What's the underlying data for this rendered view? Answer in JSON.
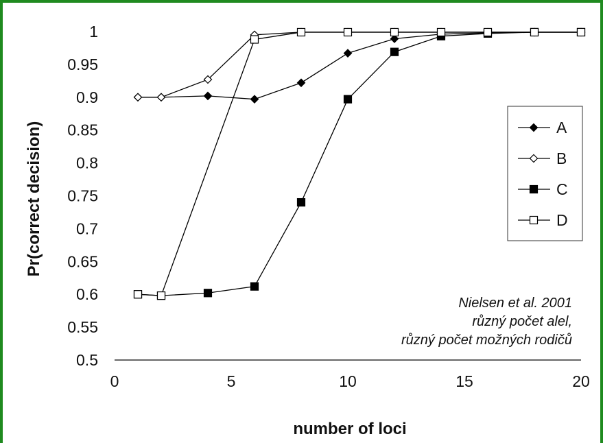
{
  "chart_data": {
    "type": "line",
    "title": "",
    "xlabel": "number of loci",
    "ylabel": "Pr(correct decision)",
    "xlim": [
      0,
      20
    ],
    "ylim": [
      0.5,
      1
    ],
    "xticks": [
      0,
      5,
      10,
      15,
      20
    ],
    "yticks": [
      0.5,
      0.55,
      0.6,
      0.65,
      0.7,
      0.75,
      0.8,
      0.85,
      0.9,
      0.95,
      1
    ],
    "grid": false,
    "legend_position": "right",
    "series": [
      {
        "name": "A",
        "marker": "filled-diamond",
        "color": "#000000",
        "x": [
          1,
          2,
          4,
          6,
          8,
          10,
          12,
          14,
          16,
          18,
          20
        ],
        "y": [
          0.9,
          0.9,
          0.902,
          0.897,
          0.922,
          0.967,
          0.989,
          0.996,
          0.998,
          0.999,
          0.999
        ]
      },
      {
        "name": "B",
        "marker": "open-diamond",
        "color": "#000000",
        "x": [
          1,
          2,
          4,
          6,
          8,
          10,
          12,
          14,
          16,
          18,
          20
        ],
        "y": [
          0.9,
          0.9,
          0.927,
          0.995,
          0.999,
          0.999,
          0.999,
          0.999,
          0.999,
          0.999,
          0.999
        ]
      },
      {
        "name": "C",
        "marker": "filled-square",
        "color": "#000000",
        "x": [
          1,
          2,
          4,
          6,
          8,
          10,
          12,
          14,
          16,
          18,
          20
        ],
        "y": [
          0.6,
          0.598,
          0.602,
          0.612,
          0.74,
          0.897,
          0.969,
          0.993,
          0.997,
          0.999,
          0.999
        ]
      },
      {
        "name": "D",
        "marker": "open-square",
        "color": "#000000",
        "x": [
          1,
          2,
          6,
          8,
          10,
          12,
          14,
          16,
          18,
          20
        ],
        "y": [
          0.6,
          0.598,
          0.988,
          0.999,
          0.999,
          0.999,
          0.999,
          0.999,
          0.999,
          0.999
        ]
      }
    ],
    "annotation": [
      "Nielsen et al. 2001",
      "různý počet alel,",
      "různý počet možných rodičů"
    ]
  },
  "frame_color": "#1f8a1f"
}
